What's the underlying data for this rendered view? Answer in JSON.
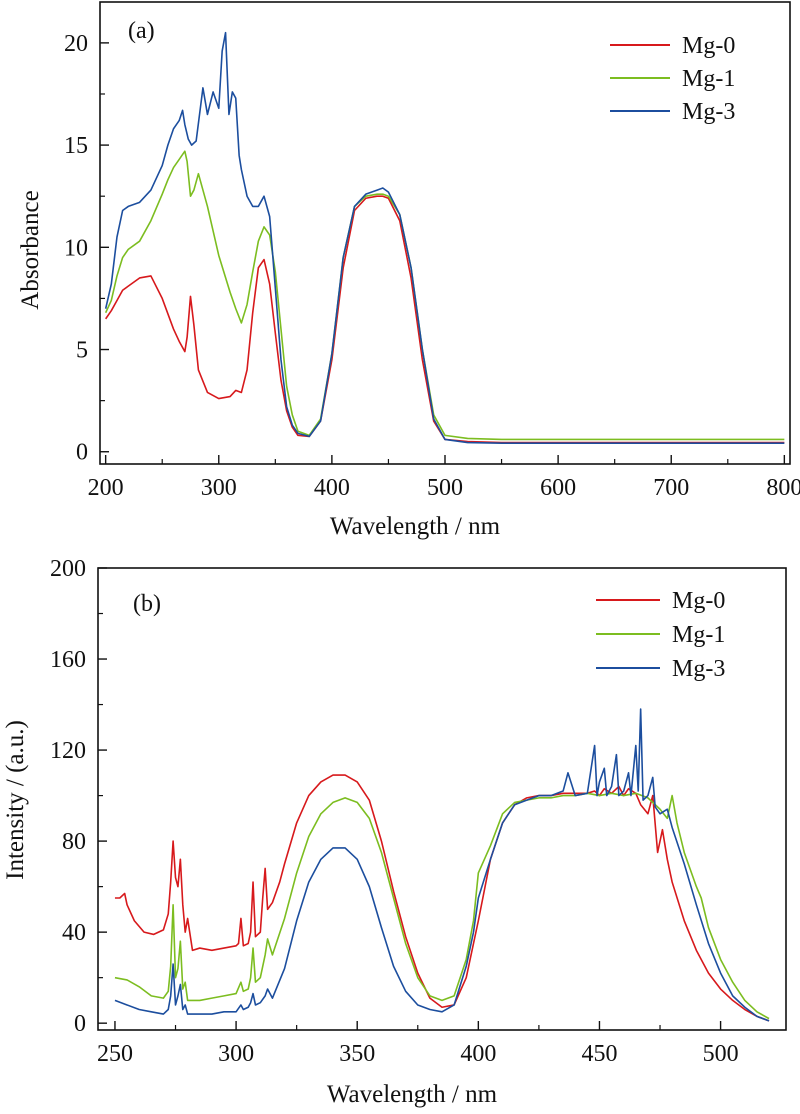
{
  "chart_data": [
    {
      "type": "line",
      "panel_label": "(a)",
      "xlabel": "Wavelength / nm",
      "ylabel": "Absorbance",
      "xlim": [
        195,
        805
      ],
      "ylim": [
        -0.6,
        22
      ],
      "xticks": [
        200,
        300,
        400,
        500,
        600,
        700,
        800
      ],
      "yticks": [
        0,
        5,
        10,
        15,
        20
      ],
      "legend_position": "top-right",
      "series": [
        {
          "name": "Mg-0",
          "color": "#d7191c",
          "x": [
            200,
            205,
            210,
            215,
            220,
            230,
            240,
            250,
            260,
            265,
            270,
            272,
            275,
            278,
            282,
            290,
            300,
            310,
            315,
            320,
            325,
            330,
            335,
            340,
            345,
            350,
            355,
            360,
            365,
            370,
            380,
            390,
            400,
            410,
            420,
            430,
            440,
            445,
            450,
            460,
            470,
            480,
            490,
            500,
            520,
            550,
            600,
            650,
            700,
            750,
            800
          ],
          "y": [
            6.5,
            6.9,
            7.4,
            7.9,
            8.1,
            8.5,
            8.6,
            7.5,
            6.0,
            5.4,
            4.9,
            5.6,
            7.6,
            6.2,
            4.0,
            2.9,
            2.6,
            2.7,
            3.0,
            2.9,
            4.0,
            6.8,
            9.0,
            9.4,
            8.2,
            5.8,
            3.5,
            2.0,
            1.2,
            0.8,
            0.75,
            1.5,
            4.5,
            9.0,
            11.8,
            12.4,
            12.5,
            12.5,
            12.4,
            11.3,
            8.5,
            4.5,
            1.5,
            0.6,
            0.5,
            0.45,
            0.45,
            0.45,
            0.45,
            0.45,
            0.45
          ]
        },
        {
          "name": "Mg-1",
          "color": "#7cbd20",
          "x": [
            200,
            205,
            210,
            215,
            220,
            230,
            240,
            250,
            255,
            260,
            265,
            270,
            272,
            275,
            278,
            282,
            290,
            300,
            310,
            315,
            320,
            325,
            330,
            335,
            340,
            345,
            350,
            355,
            360,
            365,
            370,
            380,
            390,
            400,
            410,
            420,
            430,
            440,
            445,
            450,
            460,
            470,
            480,
            490,
            500,
            520,
            550,
            600,
            650,
            700,
            750,
            800
          ],
          "y": [
            6.8,
            7.4,
            8.6,
            9.5,
            9.9,
            10.3,
            11.3,
            12.6,
            13.3,
            13.9,
            14.3,
            14.7,
            14.2,
            12.5,
            12.8,
            13.6,
            12.0,
            9.6,
            7.8,
            7.0,
            6.3,
            7.2,
            8.8,
            10.3,
            11.0,
            10.6,
            8.8,
            6.0,
            3.2,
            1.8,
            1.0,
            0.8,
            1.6,
            4.8,
            9.5,
            12.0,
            12.5,
            12.6,
            12.6,
            12.5,
            11.6,
            9.0,
            5.0,
            1.8,
            0.8,
            0.65,
            0.6,
            0.6,
            0.6,
            0.6,
            0.6,
            0.6
          ]
        },
        {
          "name": "Mg-3",
          "color": "#1c4e9e",
          "x": [
            200,
            205,
            210,
            215,
            220,
            230,
            240,
            250,
            255,
            260,
            265,
            268,
            270,
            273,
            276,
            280,
            283,
            286,
            290,
            295,
            300,
            303,
            306,
            309,
            312,
            315,
            318,
            320,
            325,
            330,
            335,
            340,
            345,
            350,
            355,
            360,
            365,
            370,
            380,
            390,
            400,
            410,
            420,
            430,
            440,
            445,
            450,
            460,
            470,
            480,
            490,
            500,
            520,
            550,
            600,
            650,
            700,
            750,
            800
          ],
          "y": [
            7.0,
            8.2,
            10.5,
            11.8,
            12.0,
            12.2,
            12.8,
            14.0,
            15.0,
            15.8,
            16.2,
            16.7,
            16.0,
            15.3,
            15.0,
            15.2,
            16.5,
            17.8,
            16.5,
            17.6,
            16.8,
            19.6,
            20.5,
            16.5,
            17.6,
            17.3,
            14.5,
            13.8,
            12.5,
            12.0,
            12.0,
            12.5,
            11.5,
            8.0,
            4.5,
            2.2,
            1.3,
            0.9,
            0.75,
            1.5,
            4.8,
            9.5,
            12.0,
            12.6,
            12.8,
            12.9,
            12.7,
            11.6,
            9.0,
            5.0,
            1.6,
            0.6,
            0.45,
            0.42,
            0.42,
            0.42,
            0.42,
            0.42,
            0.42
          ]
        }
      ]
    },
    {
      "type": "line",
      "panel_label": "(b)",
      "xlabel": "Wavelength / nm",
      "ylabel": "Intensity / (a.u.)",
      "xlim": [
        243,
        527
      ],
      "ylim": [
        -3,
        200
      ],
      "xticks": [
        250,
        300,
        350,
        400,
        450,
        500
      ],
      "yticks": [
        0,
        40,
        80,
        120,
        160,
        200
      ],
      "legend_position": "top-right",
      "series": [
        {
          "name": "Mg-0",
          "color": "#d7191c",
          "x": [
            250,
            252,
            254,
            255,
            258,
            262,
            266,
            270,
            272,
            273,
            274,
            275,
            276,
            277,
            278,
            279,
            280,
            282,
            285,
            290,
            295,
            300,
            301,
            302,
            303,
            305,
            306,
            307,
            308,
            310,
            311,
            312,
            313,
            315,
            318,
            320,
            325,
            330,
            335,
            340,
            345,
            350,
            355,
            360,
            365,
            370,
            375,
            380,
            385,
            390,
            395,
            400,
            405,
            410,
            415,
            420,
            425,
            430,
            435,
            440,
            445,
            448,
            450,
            452,
            455,
            458,
            460,
            462,
            465,
            467,
            470,
            472,
            474,
            476,
            478,
            480,
            485,
            490,
            495,
            500,
            505,
            510,
            515,
            520
          ],
          "y": [
            55,
            55,
            57,
            52,
            45,
            40,
            39,
            41,
            48,
            62,
            80,
            64,
            60,
            72,
            52,
            40,
            46,
            32,
            33,
            32,
            33,
            34,
            35,
            46,
            34,
            35,
            40,
            62,
            38,
            40,
            55,
            68,
            50,
            53,
            62,
            70,
            88,
            100,
            106,
            109,
            109,
            106,
            98,
            80,
            58,
            38,
            22,
            11,
            7,
            8,
            20,
            45,
            72,
            88,
            96,
            99,
            100,
            100,
            101,
            101,
            101,
            102,
            100,
            103,
            101,
            104,
            100,
            103,
            101,
            96,
            92,
            100,
            75,
            85,
            72,
            62,
            45,
            32,
            22,
            15,
            10,
            6,
            3,
            1
          ]
        },
        {
          "name": "Mg-1",
          "color": "#7cbd20",
          "x": [
            250,
            255,
            260,
            265,
            270,
            272,
            273,
            274,
            275,
            276,
            277,
            278,
            279,
            280,
            285,
            290,
            295,
            300,
            302,
            303,
            305,
            306,
            307,
            308,
            310,
            312,
            313,
            315,
            320,
            325,
            330,
            335,
            340,
            345,
            350,
            355,
            360,
            365,
            370,
            375,
            380,
            385,
            390,
            395,
            398,
            400,
            405,
            410,
            415,
            420,
            425,
            430,
            435,
            440,
            445,
            450,
            455,
            460,
            465,
            470,
            475,
            478,
            480,
            482,
            485,
            490,
            492,
            495,
            500,
            505,
            510,
            515,
            520
          ],
          "y": [
            20,
            19,
            16,
            12,
            11,
            14,
            25,
            52,
            20,
            24,
            36,
            15,
            18,
            10,
            10,
            11,
            12,
            13,
            18,
            14,
            15,
            20,
            33,
            18,
            20,
            30,
            37,
            30,
            46,
            66,
            82,
            92,
            97,
            99,
            97,
            90,
            75,
            55,
            35,
            20,
            12,
            10,
            12,
            28,
            45,
            66,
            78,
            92,
            97,
            98,
            99,
            99,
            100,
            100,
            101,
            100,
            101,
            100,
            101,
            99,
            94,
            90,
            100,
            88,
            75,
            60,
            55,
            42,
            28,
            18,
            10,
            5,
            2
          ]
        },
        {
          "name": "Mg-3",
          "color": "#1c4e9e",
          "x": [
            250,
            255,
            260,
            265,
            270,
            272,
            273,
            274,
            275,
            276,
            277,
            278,
            279,
            280,
            285,
            290,
            295,
            300,
            302,
            303,
            305,
            306,
            307,
            308,
            310,
            312,
            313,
            315,
            320,
            325,
            330,
            335,
            340,
            345,
            350,
            355,
            360,
            365,
            370,
            375,
            380,
            385,
            390,
            395,
            398,
            400,
            405,
            410,
            415,
            420,
            425,
            430,
            435,
            437,
            440,
            445,
            448,
            449,
            450,
            452,
            453,
            455,
            457,
            458,
            460,
            462,
            463,
            465,
            466,
            467,
            468,
            470,
            472,
            473,
            475,
            478,
            480,
            485,
            490,
            495,
            500,
            505,
            510,
            515,
            520
          ],
          "y": [
            10,
            8,
            6,
            5,
            4,
            6,
            12,
            26,
            8,
            12,
            17,
            6,
            8,
            4,
            4,
            4,
            5,
            5,
            8,
            6,
            7,
            9,
            13,
            8,
            9,
            12,
            15,
            11,
            24,
            45,
            62,
            72,
            77,
            77,
            72,
            60,
            42,
            25,
            14,
            8,
            6,
            5,
            8,
            25,
            40,
            55,
            72,
            88,
            96,
            98,
            100,
            100,
            102,
            110,
            100,
            101,
            122,
            100,
            106,
            112,
            100,
            104,
            118,
            100,
            102,
            110,
            100,
            122,
            102,
            138,
            98,
            100,
            108,
            95,
            92,
            94,
            86,
            70,
            52,
            35,
            22,
            12,
            7,
            3,
            1
          ]
        }
      ]
    }
  ]
}
